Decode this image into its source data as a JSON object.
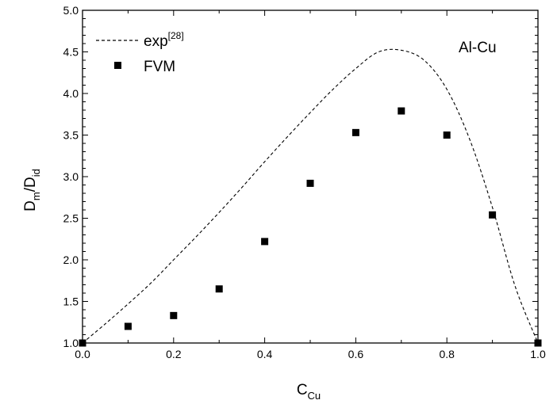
{
  "chart_data": {
    "type": "scatter",
    "xlabel": {
      "main": "C",
      "sub": "Cu"
    },
    "ylabel": {
      "main1": "D",
      "sub1": "m",
      "main2": "/D",
      "sub2": "id"
    },
    "xlim": [
      0.0,
      1.0
    ],
    "ylim": [
      1.0,
      5.0
    ],
    "x_ticks": [
      "0.0",
      "0.2",
      "0.4",
      "0.6",
      "0.8",
      "1.0"
    ],
    "y_ticks": [
      "1.0",
      "1.5",
      "2.0",
      "2.5",
      "3.0",
      "3.5",
      "4.0",
      "4.5",
      "5.0"
    ],
    "grid": false,
    "legend_position": "top-left",
    "annotation": "Al-Cu",
    "series": [
      {
        "name": "exp",
        "name_sup": "[28]",
        "style": "dashed-line",
        "color": "#000000",
        "x": [
          0.0,
          0.05,
          0.1,
          0.15,
          0.2,
          0.25,
          0.3,
          0.35,
          0.4,
          0.45,
          0.5,
          0.55,
          0.6,
          0.65,
          0.7,
          0.75,
          0.8,
          0.85,
          0.9,
          0.95,
          1.0
        ],
        "y": [
          1.0,
          1.23,
          1.47,
          1.72,
          2.0,
          2.28,
          2.57,
          2.87,
          3.18,
          3.48,
          3.77,
          4.05,
          4.3,
          4.5,
          4.52,
          4.4,
          4.05,
          3.45,
          2.63,
          1.68,
          1.0
        ]
      },
      {
        "name": "FVM",
        "style": "square-markers",
        "color": "#000000",
        "x": [
          0.0,
          0.1,
          0.2,
          0.3,
          0.4,
          0.5,
          0.6,
          0.7,
          0.8,
          0.9,
          1.0
        ],
        "y": [
          1.0,
          1.2,
          1.33,
          1.65,
          2.22,
          2.92,
          3.53,
          3.79,
          3.5,
          2.54,
          1.0
        ]
      }
    ]
  }
}
